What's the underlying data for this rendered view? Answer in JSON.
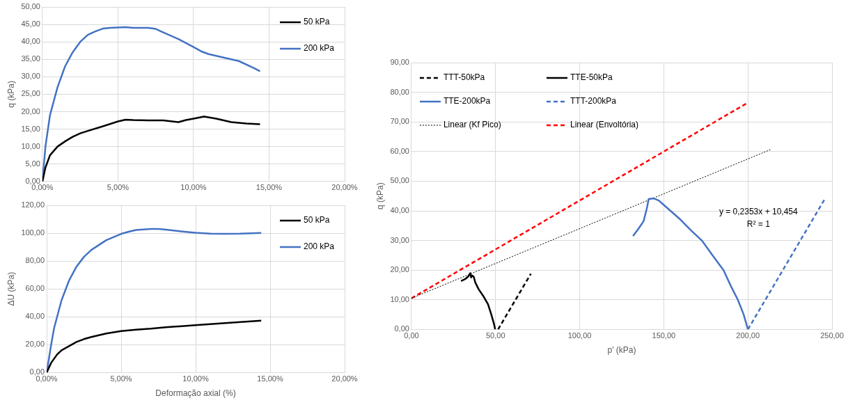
{
  "chart_data": [
    {
      "type": "line",
      "ylabel": "q (kPa)",
      "xlim": [
        0,
        20
      ],
      "xticks": [
        {
          "value": 0,
          "label": "0,00%"
        },
        {
          "value": 5,
          "label": "5,00%"
        },
        {
          "value": 10,
          "label": "10,00%"
        },
        {
          "value": 15,
          "label": "15,00%"
        },
        {
          "value": 20,
          "label": "20,00%"
        }
      ],
      "ylim": [
        0,
        50
      ],
      "yticks": [
        {
          "value": 0,
          "label": "0,00"
        },
        {
          "value": 5,
          "label": "5,00"
        },
        {
          "value": 10,
          "label": "10,00"
        },
        {
          "value": 15,
          "label": "15,00"
        },
        {
          "value": 20,
          "label": "20,00"
        },
        {
          "value": 25,
          "label": "25,00"
        },
        {
          "value": 30,
          "label": "30,00"
        },
        {
          "value": 35,
          "label": "35,00"
        },
        {
          "value": 40,
          "label": "40,00"
        },
        {
          "value": 45,
          "label": "45,00"
        },
        {
          "value": 50,
          "label": "50,00"
        }
      ],
      "grid": true,
      "legend": "top right",
      "marker": "none",
      "line_style": "solid",
      "series": [
        {
          "name": "50 kPa",
          "color": "#000000",
          "x": [
            0,
            0.2,
            0.5,
            1,
            1.5,
            2,
            2.5,
            3,
            4,
            5,
            5.5,
            6,
            7,
            8,
            9,
            9.5,
            10,
            10.7,
            11.5,
            12.5,
            13.5,
            14.4
          ],
          "values": [
            0,
            4,
            7.5,
            10,
            11.5,
            12.8,
            13.8,
            14.5,
            15.8,
            17.2,
            17.7,
            17.6,
            17.5,
            17.5,
            17,
            17.6,
            18,
            18.6,
            18,
            17,
            16.6,
            16.4
          ]
        },
        {
          "name": "200 kPa",
          "color": "#4472c4",
          "x": [
            0,
            0.2,
            0.5,
            1,
            1.5,
            2,
            2.5,
            3,
            3.5,
            4,
            4.5,
            5,
            5.5,
            6,
            7,
            7.5,
            8,
            9,
            10,
            10.5,
            11,
            12,
            13,
            14,
            14.4
          ],
          "values": [
            0,
            10,
            19,
            27,
            33,
            37,
            40,
            42,
            43,
            43.8,
            44,
            44.1,
            44.2,
            44,
            44,
            43.7,
            42.7,
            40.8,
            38.5,
            37.3,
            36.5,
            35.5,
            34.5,
            32.5,
            31.6
          ]
        }
      ]
    },
    {
      "type": "line",
      "xlabel": "Deformação axial (%)",
      "ylabel": "ΔU (kPa)",
      "xlim": [
        0,
        20
      ],
      "xticks": [
        {
          "value": 0,
          "label": "0,00%"
        },
        {
          "value": 5,
          "label": "5,00%"
        },
        {
          "value": 10,
          "label": "10,00%"
        },
        {
          "value": 15,
          "label": "15,00%"
        },
        {
          "value": 20,
          "label": "20,00%"
        }
      ],
      "ylim": [
        0,
        120
      ],
      "yticks": [
        {
          "value": 0,
          "label": "0,00"
        },
        {
          "value": 20,
          "label": "20,00"
        },
        {
          "value": 40,
          "label": "40,00"
        },
        {
          "value": 60,
          "label": "60,00"
        },
        {
          "value": 80,
          "label": "80,00"
        },
        {
          "value": 100,
          "label": "100,00"
        },
        {
          "value": 120,
          "label": "120,00"
        }
      ],
      "grid": true,
      "legend": "top right",
      "marker": "none",
      "line_style": "solid",
      "series": [
        {
          "name": "50 kPa",
          "color": "#000000",
          "x": [
            0,
            0.3,
            0.7,
            1,
            1.5,
            2,
            2.5,
            3,
            4,
            5,
            6,
            7,
            8,
            10,
            12,
            14.4
          ],
          "values": [
            0,
            7,
            13,
            16,
            19,
            22,
            24,
            25.5,
            28,
            29.8,
            30.8,
            31.5,
            32.5,
            34,
            35.5,
            37.3
          ]
        },
        {
          "name": "200 kPa",
          "color": "#4472c4",
          "x": [
            0,
            0.3,
            0.5,
            1,
            1.5,
            2,
            2.5,
            3,
            4,
            5,
            5.5,
            6,
            7,
            7.5,
            8,
            9,
            10,
            11,
            12,
            13,
            14.4
          ],
          "values": [
            0,
            20,
            32,
            52,
            66,
            76,
            83,
            88,
            95,
            99.5,
            101,
            102.3,
            103,
            103,
            102.5,
            101.3,
            100.3,
            99.6,
            99.5,
            99.6,
            100.2
          ]
        }
      ]
    },
    {
      "type": "line",
      "xlabel": "p' (kPa)",
      "ylabel": "q (kPa)",
      "xlim": [
        0,
        250
      ],
      "xticks": [
        {
          "value": 0,
          "label": "0,00"
        },
        {
          "value": 50,
          "label": "50,00"
        },
        {
          "value": 100,
          "label": "100,00"
        },
        {
          "value": 150,
          "label": "150,00"
        },
        {
          "value": 200,
          "label": "200,00"
        },
        {
          "value": 250,
          "label": "250,00"
        }
      ],
      "ylim": [
        0,
        90
      ],
      "yticks": [
        {
          "value": 0,
          "label": "0,00"
        },
        {
          "value": 10,
          "label": "10,00"
        },
        {
          "value": 20,
          "label": "20,00"
        },
        {
          "value": 30,
          "label": "30,00"
        },
        {
          "value": 40,
          "label": "40,00"
        },
        {
          "value": 50,
          "label": "50,00"
        },
        {
          "value": 60,
          "label": "60,00"
        },
        {
          "value": 70,
          "label": "70,00"
        },
        {
          "value": 80,
          "label": "80,00"
        },
        {
          "value": 90,
          "label": "90,00"
        }
      ],
      "grid": true,
      "legend": "top left",
      "marker": "none",
      "annotations": [
        "y = 0,2353x + 10,454",
        "R² = 1"
      ],
      "series": [
        {
          "name": "TTT-50kPa",
          "color": "#000000",
          "line_style": "dashed",
          "x": [
            51.5,
            71
          ],
          "values": [
            0,
            18.8
          ]
        },
        {
          "name": "TTE-50kPa",
          "color": "#000000",
          "line_style": "solid",
          "x": [
            29.5,
            32,
            34,
            35,
            35.5,
            36,
            37,
            38,
            40,
            43,
            45.5,
            47.5,
            49,
            49.8
          ],
          "values": [
            16.3,
            17,
            18,
            19,
            17.5,
            18.2,
            17.8,
            15.8,
            13.5,
            11,
            8.5,
            5,
            2,
            0
          ]
        },
        {
          "name": "TTE-200kPa",
          "color": "#4472c4",
          "line_style": "solid",
          "x": [
            131.7,
            135,
            138,
            140,
            141,
            144,
            147,
            150,
            154,
            160,
            166,
            172.6,
            179,
            185.5,
            190,
            194,
            197.5,
            200
          ],
          "values": [
            31.5,
            34,
            36.5,
            41,
            44,
            44.2,
            43.5,
            42,
            40,
            37,
            33.5,
            30,
            25,
            20,
            14.5,
            10,
            5,
            0
          ]
        },
        {
          "name": "TTT-200kPa",
          "color": "#4472c4",
          "line_style": "dashed",
          "x": [
            200,
            246
          ],
          "values": [
            0,
            44.3
          ]
        },
        {
          "name": "Linear (Kf Pico)",
          "color": "#000000",
          "line_style": "dotted",
          "x": [
            0,
            214
          ],
          "values": [
            10.5,
            60.8
          ]
        },
        {
          "name": "Linear (Envoltória)",
          "color": "#ff0000",
          "line_style": "dashed",
          "x": [
            0,
            200
          ],
          "values": [
            10.5,
            76.5
          ]
        }
      ]
    }
  ]
}
